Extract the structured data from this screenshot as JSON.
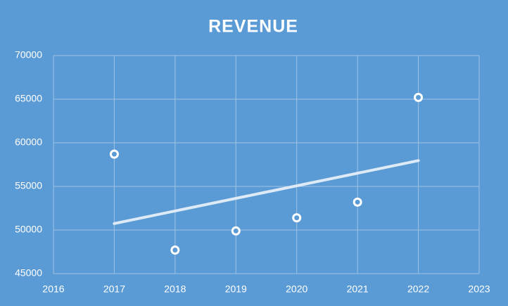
{
  "chart_data": {
    "type": "scatter",
    "title": "REVENUE",
    "x": [
      2017,
      2018,
      2019,
      2020,
      2021,
      2022
    ],
    "series": [
      {
        "color": "#ffffff",
        "values": [
          58700,
          47700,
          49900,
          51400,
          53200,
          65200
        ]
      }
    ],
    "xlim": [
      2016,
      2023
    ],
    "xticks": [
      2016,
      2017,
      2018,
      2019,
      2020,
      2021,
      2022,
      2023
    ],
    "ylim": [
      45000,
      70000
    ],
    "yticks": [
      45000,
      50000,
      55000,
      60000,
      65000,
      70000
    ],
    "grid": true,
    "trendline": "linear",
    "background": "#5b9bd5"
  }
}
